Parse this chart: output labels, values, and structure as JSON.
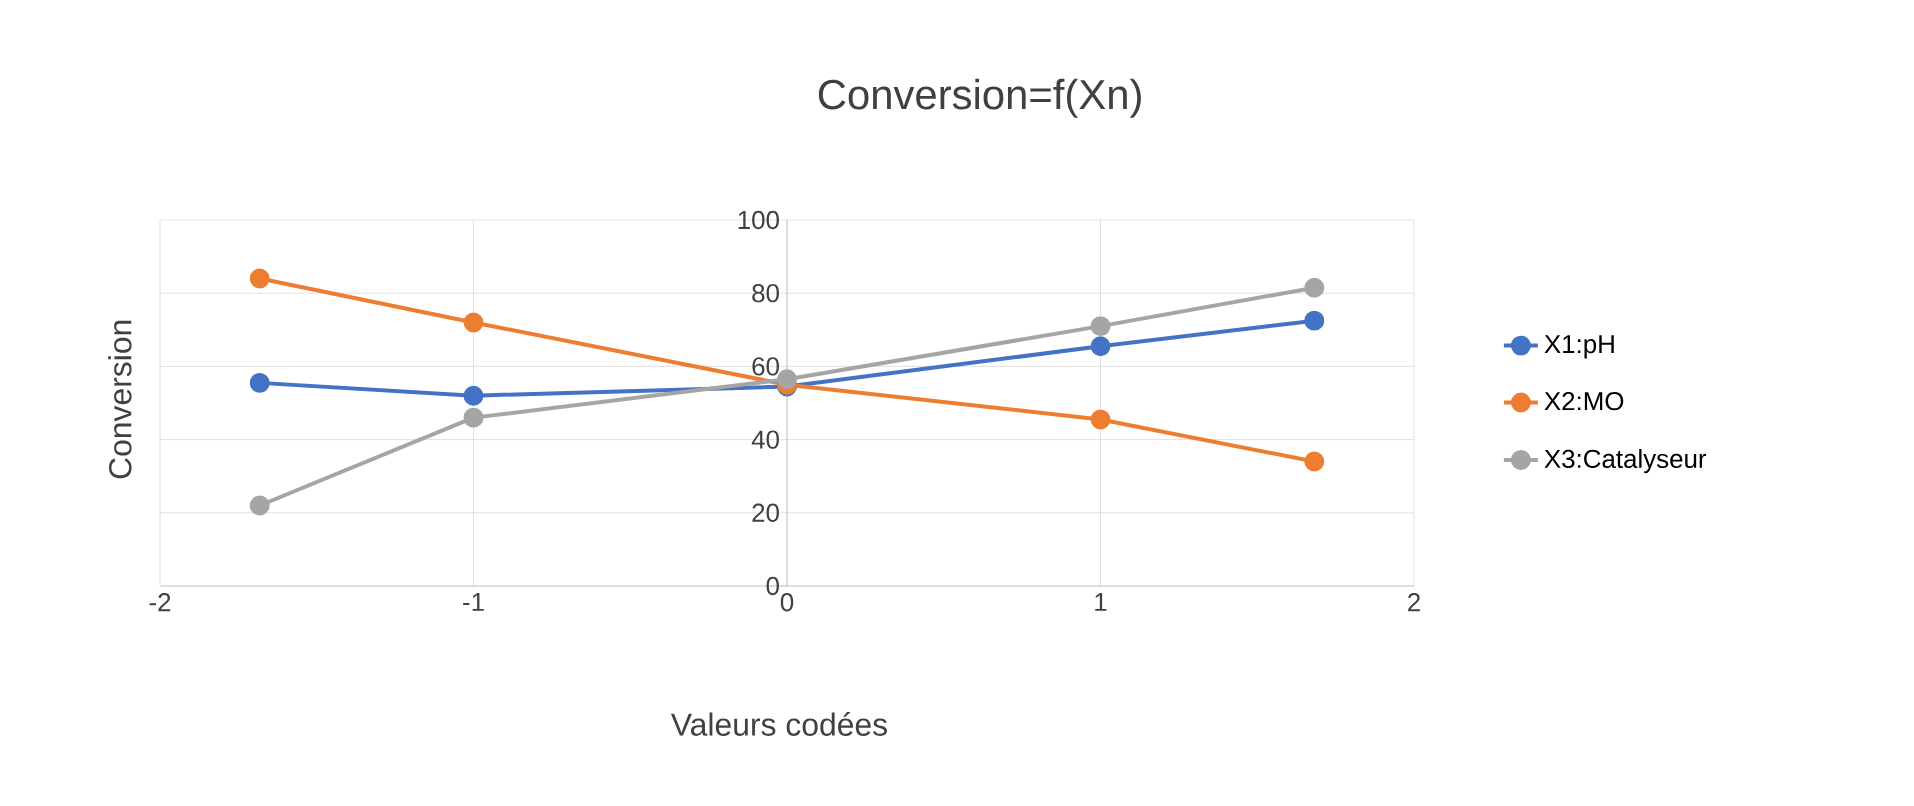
{
  "chart_data": {
    "type": "line",
    "title": "Conversion=f(Xn)",
    "xlabel": "Valeurs codées",
    "ylabel": "Conversion",
    "xlim": [
      -2,
      2
    ],
    "xticks": [
      -2,
      -1,
      0,
      1,
      2
    ],
    "ylim": [
      0,
      100
    ],
    "yticks": [
      0,
      20,
      40,
      60,
      80,
      100
    ],
    "grid": true,
    "legend": "right",
    "marker": "circle",
    "line_style": "solid",
    "series": [
      {
        "name": "X1:pH",
        "color": "#4472c4",
        "x": [
          -1.682,
          -1,
          0,
          1,
          1.682
        ],
        "values": [
          55.5,
          52,
          54.5,
          65.5,
          72.5
        ]
      },
      {
        "name": "X2:MO",
        "color": "#ed7d31",
        "x": [
          -1.682,
          -1,
          0,
          1,
          1.682
        ],
        "values": [
          84,
          72,
          55,
          45.5,
          34
        ]
      },
      {
        "name": "X3:Catalyseur",
        "color": "#a5a5a5",
        "x": [
          -1.682,
          -1,
          0,
          1,
          1.682
        ],
        "values": [
          22,
          46,
          56.5,
          71,
          81.5
        ]
      }
    ]
  }
}
